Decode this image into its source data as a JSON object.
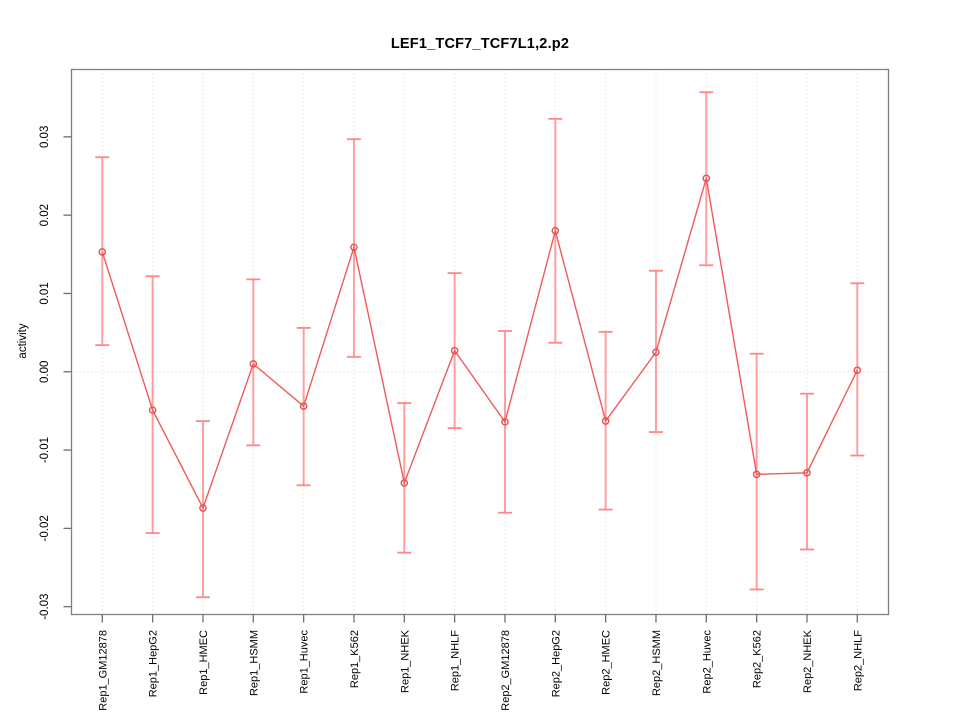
{
  "chart_data": {
    "type": "line",
    "title": "LEF1_TCF7_TCF7L1,2.p2",
    "xlabel": "",
    "ylabel": "activity",
    "legend": "none",
    "grid": "vertical dotted gridline per category; horizontal dotted line at 0.00 only",
    "marker": "open-circle",
    "error_bars": true,
    "ylim": [
      -0.031,
      0.0386
    ],
    "ytick_values": [
      -0.03,
      -0.02,
      -0.01,
      0.0,
      0.01,
      0.02,
      0.03
    ],
    "ytick_labels": [
      "-0.03",
      "-0.02",
      "-0.01",
      "0.00",
      "0.01",
      "0.02",
      "0.03"
    ],
    "categories": [
      "Rep1_GM12878",
      "Rep1_HepG2",
      "Rep1_HMEC",
      "Rep1_HSMM",
      "Rep1_Huvec",
      "Rep1_K562",
      "Rep1_NHEK",
      "Rep1_NHLF",
      "Rep2_GM12878",
      "Rep2_HepG2",
      "Rep2_HMEC",
      "Rep2_HSMM",
      "Rep2_Huvec",
      "Rep2_K562",
      "Rep2_NHEK",
      "Rep2_NHLF"
    ],
    "series": [
      {
        "name": "activity",
        "values": [
          0.0153,
          -0.0049,
          -0.0174,
          0.001,
          -0.0044,
          0.0159,
          -0.0142,
          0.0027,
          -0.0064,
          0.018,
          -0.0063,
          0.0025,
          0.0247,
          -0.0131,
          -0.0129,
          0.0002
        ],
        "upper": [
          0.0274,
          0.0122,
          -0.0063,
          0.0118,
          0.0056,
          0.0297,
          -0.004,
          0.0126,
          0.0052,
          0.0323,
          0.0051,
          0.0129,
          0.0357,
          0.0023,
          -0.0028,
          0.0113
        ],
        "lower": [
          0.0034,
          -0.0206,
          -0.0288,
          -0.0094,
          -0.0145,
          0.0019,
          -0.0231,
          -0.0072,
          -0.018,
          0.0037,
          -0.0176,
          -0.0077,
          0.0136,
          -0.0278,
          -0.0227,
          -0.0107
        ]
      }
    ],
    "colors": {
      "line": "#f05a5a",
      "marker": "#e25252",
      "error_bar": "#ff9e9e",
      "error_cap": "#ff8787",
      "grid": "#d6d6d6",
      "zero_line": "#cfcfcf",
      "box": "#808080",
      "tick": "#6e6e6e",
      "text": "#000000"
    }
  }
}
